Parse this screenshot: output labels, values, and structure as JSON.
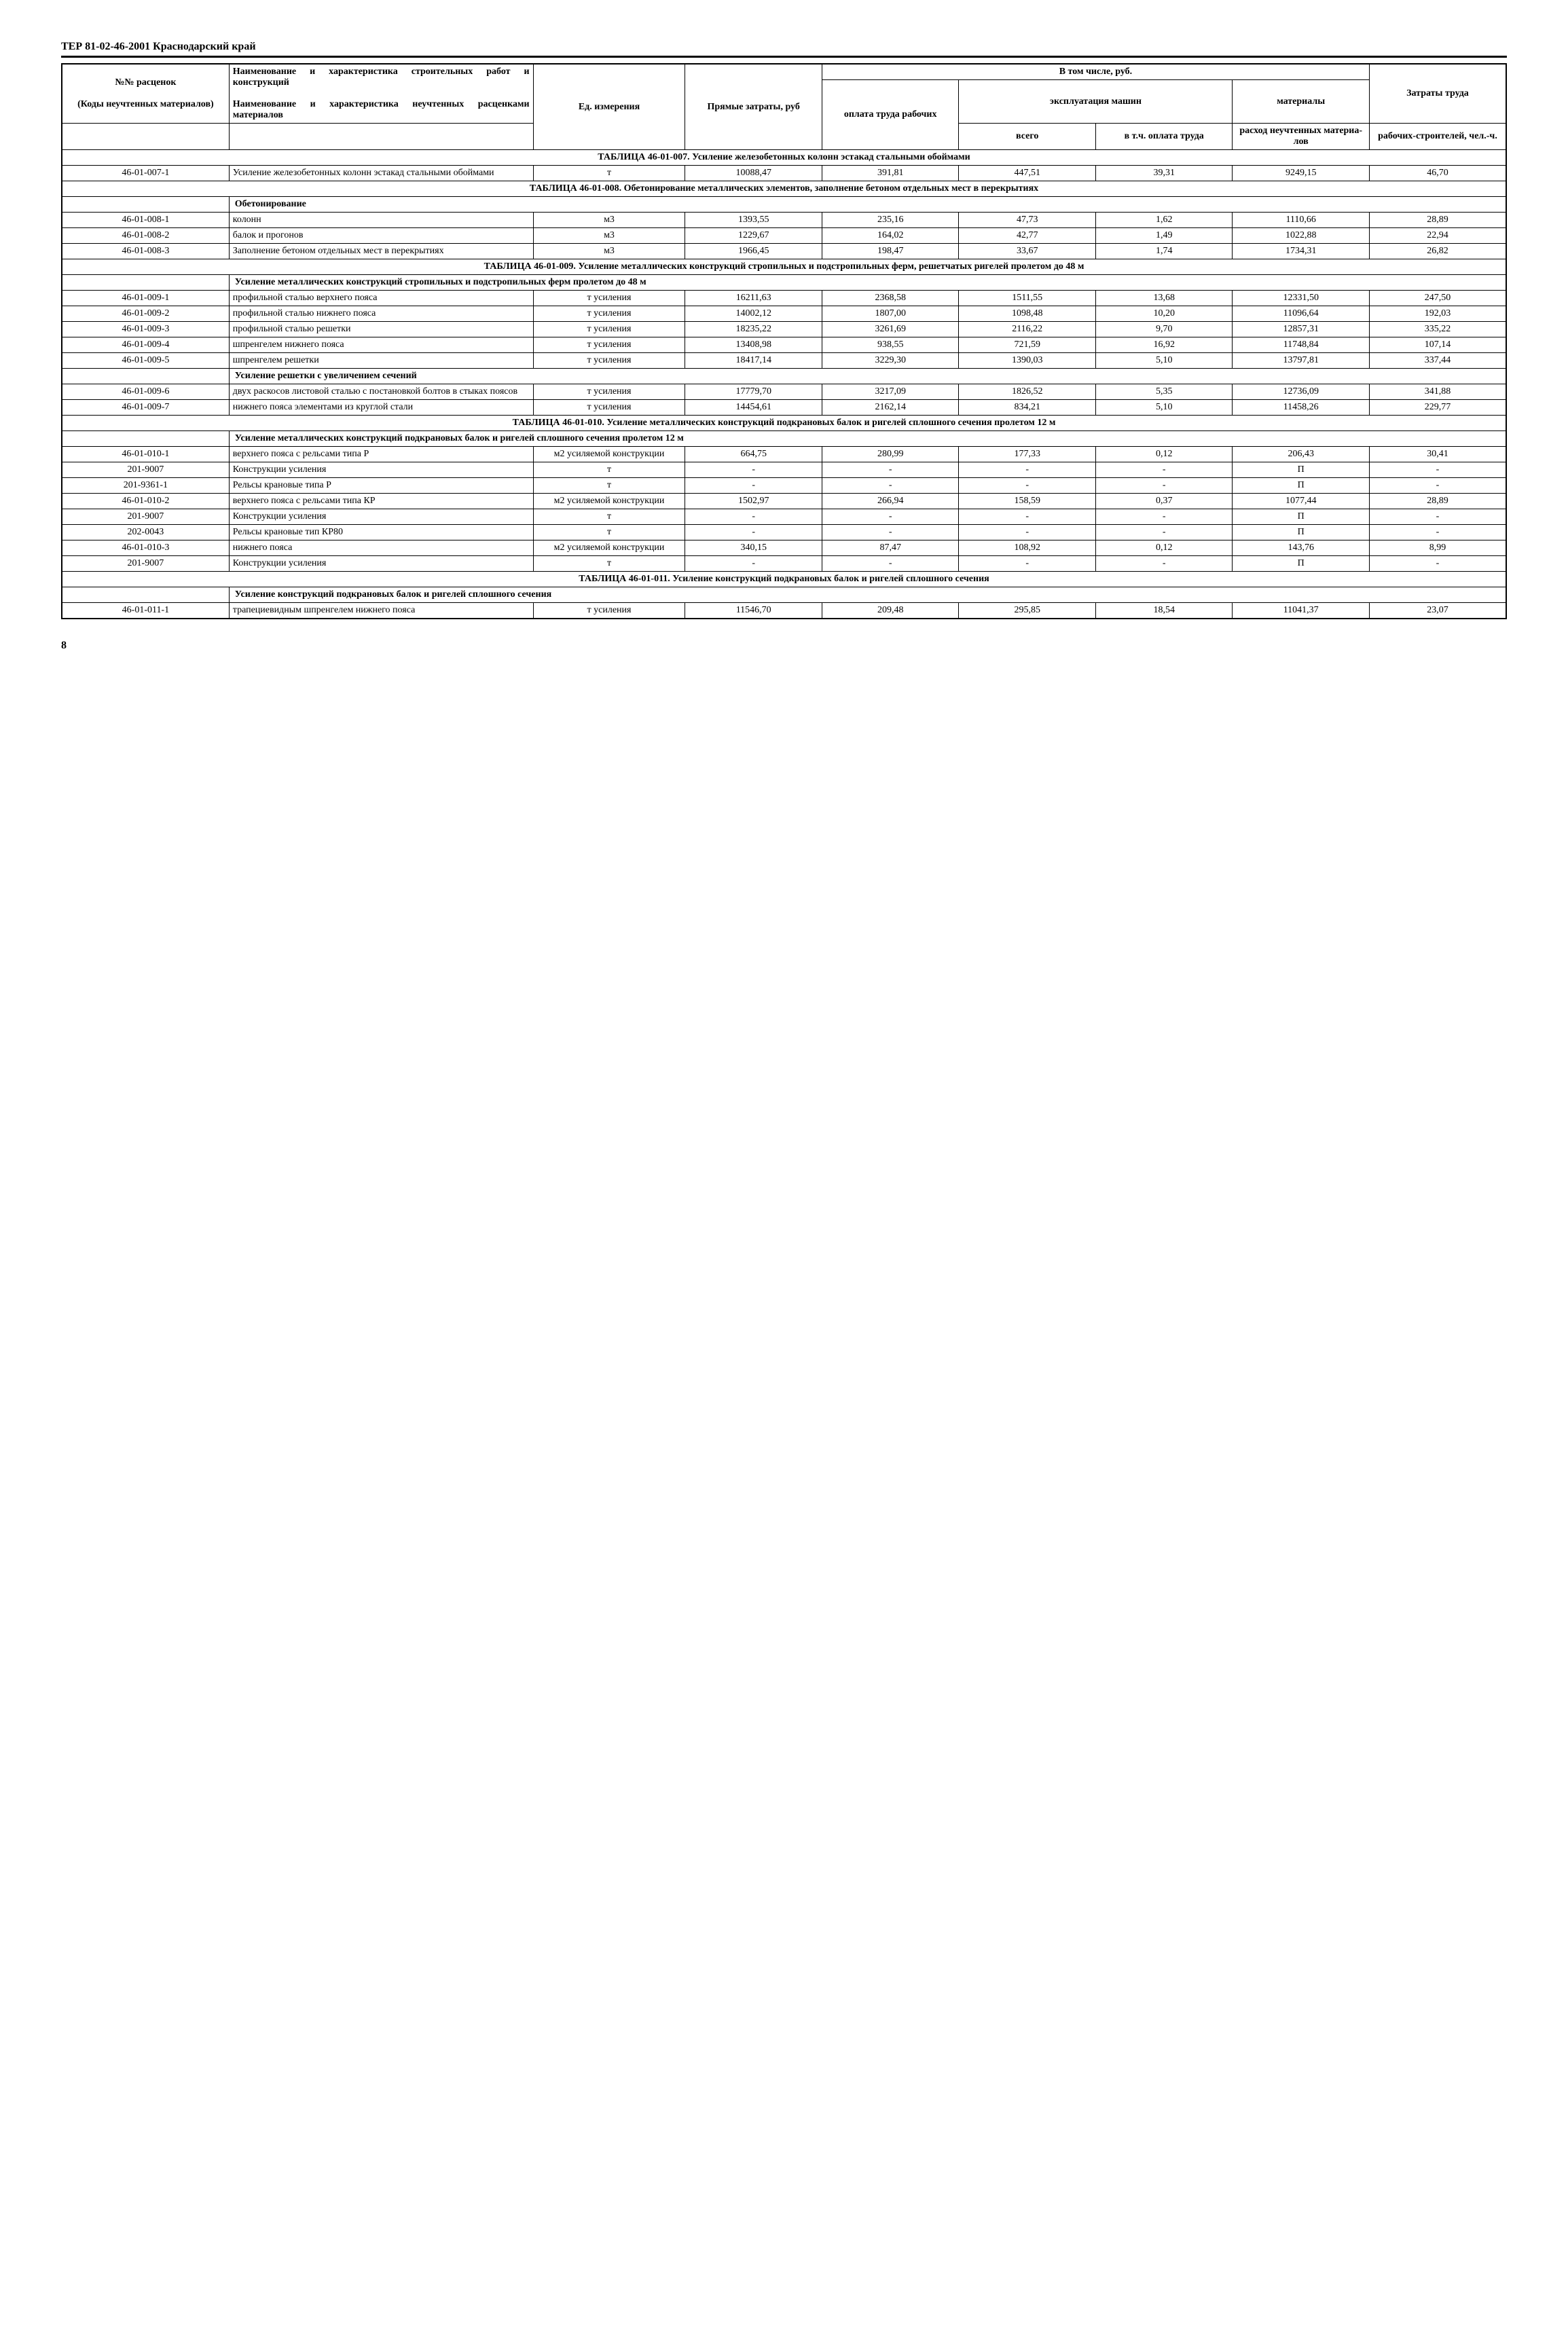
{
  "doc_header": "ТЕР 81-02-46-2001   Краснодарский край",
  "page_number": "8",
  "headers": {
    "col1_top": "№№ расценок",
    "col1_bottom": "(Коды неучтенных материалов)",
    "col2_top": "Наименование и харак­теристика строительных работ и конструкций",
    "col2_bottom": "Наименование и харак­теристика неучтенных расценками материалов",
    "col3": "Ед. измере­ния",
    "col4": "Прямые затраты, руб",
    "vtom": "В том числе, руб.",
    "col5": "оплата труда рабочих",
    "expl": "эксплуатация машин",
    "col6": "всего",
    "col7": "в т.ч. оплата труда",
    "col8_top": "материа­лы",
    "col8_bottom": "расход неучтен­ных материа­лов",
    "col9_top": "Затраты труда",
    "col9_bottom": "рабочих-строите­лей, чел.-ч."
  },
  "sections": {
    "s007": "ТАБЛИЦА  46-01-007.  Усиление железобетонных колонн эстакад стальными обоймами",
    "s008": "ТАБЛИЦА  46-01-008.  Обетонирование металлических элементов, заполнение бетоном отдельных мест в перекрытиях",
    "s009": "ТАБЛИЦА  46-01-009.  Усиление металлических конструкций стропильных и подстропильных ферм, решет­чатых ригелей пролетом до 48 м",
    "s009sub1": "Усиление металлических конструкций стропильных и подстропильных ферм пролетом до 48 м",
    "s009sub2": "Усиление решетки с увеличением сечений",
    "s010": "ТАБЛИЦА  46-01-010.  Усиление металлических конструкций подкрановых балок и ригелей сплошного сечения пролетом 12 м",
    "s010sub": "Усиление металлических конструкций подкрановых балок и ригелей сплошного сечения проле­том 12 м",
    "s011": "ТАБЛИЦА  46-01-011.  Усиление конструкций подкрановых балок и ригелей сплошного сечения",
    "s011sub": "Усиление конструкций подкрановых балок и ригелей сплошного сечения",
    "obeto": "Обетонирование"
  },
  "rows": {
    "r007_1": {
      "code": "46-01-007-1",
      "name": "Усиление железобе­тонных колонн эстакад стальными обоймами",
      "unit": "т",
      "c4": "10088,47",
      "c5": "391,81",
      "c6": "447,51",
      "c7": "39,31",
      "c8": "9249,15",
      "c9": "46,70"
    },
    "r008_1": {
      "code": "46-01-008-1",
      "name": "колонн",
      "unit": "м3",
      "c4": "1393,55",
      "c5": "235,16",
      "c6": "47,73",
      "c7": "1,62",
      "c8": "1110,66",
      "c9": "28,89"
    },
    "r008_2": {
      "code": "46-01-008-2",
      "name": "балок и прогонов",
      "unit": "м3",
      "c4": "1229,67",
      "c5": "164,02",
      "c6": "42,77",
      "c7": "1,49",
      "c8": "1022,88",
      "c9": "22,94"
    },
    "r008_3": {
      "code": "46-01-008-3",
      "name": "Заполнение бетоном отдельных мест в перекрытиях",
      "unit": "м3",
      "c4": "1966,45",
      "c5": "198,47",
      "c6": "33,67",
      "c7": "1,74",
      "c8": "1734,31",
      "c9": "26,82"
    },
    "r009_1": {
      "code": "46-01-009-1",
      "name": "профильной сталью верхнего пояса",
      "unit": "т усиления",
      "c4": "16211,63",
      "c5": "2368,58",
      "c6": "1511,55",
      "c7": "13,68",
      "c8": "12331,50",
      "c9": "247,50"
    },
    "r009_2": {
      "code": "46-01-009-2",
      "name": "профильной сталью нижнего пояса",
      "unit": "т усиления",
      "c4": "14002,12",
      "c5": "1807,00",
      "c6": "1098,48",
      "c7": "10,20",
      "c8": "11096,64",
      "c9": "192,03"
    },
    "r009_3": {
      "code": "46-01-009-3",
      "name": "профильной сталью решетки",
      "unit": "т усиления",
      "c4": "18235,22",
      "c5": "3261,69",
      "c6": "2116,22",
      "c7": "9,70",
      "c8": "12857,31",
      "c9": "335,22"
    },
    "r009_4": {
      "code": "46-01-009-4",
      "name": "шпренгелем нижнего пояса",
      "unit": "т усиления",
      "c4": "13408,98",
      "c5": "938,55",
      "c6": "721,59",
      "c7": "16,92",
      "c8": "11748,84",
      "c9": "107,14"
    },
    "r009_5": {
      "code": "46-01-009-5",
      "name": "шпренгелем решетки",
      "unit": "т усиления",
      "c4": "18417,14",
      "c5": "3229,30",
      "c6": "1390,03",
      "c7": "5,10",
      "c8": "13797,81",
      "c9": "337,44"
    },
    "r009_6": {
      "code": "46-01-009-6",
      "name": "двух раскосов листо­вой сталью с постанов­кой болтов в стыках поясов",
      "unit": "т усиления",
      "c4": "17779,70",
      "c5": "3217,09",
      "c6": "1826,52",
      "c7": "5,35",
      "c8": "12736,09",
      "c9": "341,88"
    },
    "r009_7": {
      "code": "46-01-009-7",
      "name": "нижнего пояса элемен­тами из круглой стали",
      "unit": "т усиления",
      "c4": "14454,61",
      "c5": "2162,14",
      "c6": "834,21",
      "c7": "5,10",
      "c8": "11458,26",
      "c9": "229,77"
    },
    "r010_1": {
      "code": "46-01-010-1",
      "name": "верхнего пояса с рельсами типа Р",
      "unit": "м2 усиляе­мой конст­рукции",
      "c4": "664,75",
      "c5": "280,99",
      "c6": "177,33",
      "c7": "0,12",
      "c8": "206,43",
      "c9": "30,41"
    },
    "r010_1a": {
      "code": "201-9007",
      "name": "Конструкции усиления",
      "unit": "т",
      "c4": "-",
      "c5": "-",
      "c6": "-",
      "c7": "-",
      "c8": "П",
      "c9": "-"
    },
    "r010_1b": {
      "code": "201-9361-1",
      "name": "Рельсы крановые типа Р",
      "unit": "т",
      "c4": "-",
      "c5": "-",
      "c6": "-",
      "c7": "-",
      "c8": "П",
      "c9": "-"
    },
    "r010_2": {
      "code": "46-01-010-2",
      "name": "верхнего пояса с рельсами типа КР",
      "unit": "м2 усиляе­мой конст­рукции",
      "c4": "1502,97",
      "c5": "266,94",
      "c6": "158,59",
      "c7": "0,37",
      "c8": "1077,44",
      "c9": "28,89"
    },
    "r010_2a": {
      "code": "201-9007",
      "name": "Конструкции усиления",
      "unit": "т",
      "c4": "-",
      "c5": "-",
      "c6": "-",
      "c7": "-",
      "c8": "П",
      "c9": "-"
    },
    "r010_2b": {
      "code": "202-0043",
      "name": "Рельсы крановые тип КР80",
      "unit": "т",
      "c4": "-",
      "c5": "-",
      "c6": "-",
      "c7": "-",
      "c8": "П",
      "c9": "-"
    },
    "r010_3": {
      "code": "46-01-010-3",
      "name": "нижнего пояса",
      "unit": "м2 усиляе­мой конст­рукции",
      "c4": "340,15",
      "c5": "87,47",
      "c6": "108,92",
      "c7": "0,12",
      "c8": "143,76",
      "c9": "8,99"
    },
    "r010_3a": {
      "code": "201-9007",
      "name": "Конструкции усиления",
      "unit": "т",
      "c4": "-",
      "c5": "-",
      "c6": "-",
      "c7": "-",
      "c8": "П",
      "c9": "-"
    },
    "r011_1": {
      "code": "46-01-011-1",
      "name": "трапециевидным шпренгелем нижнего пояса",
      "unit": "т усиления",
      "c4": "11546,70",
      "c5": "209,48",
      "c6": "295,85",
      "c7": "18,54",
      "c8": "11041,37",
      "c9": "23,07"
    }
  }
}
